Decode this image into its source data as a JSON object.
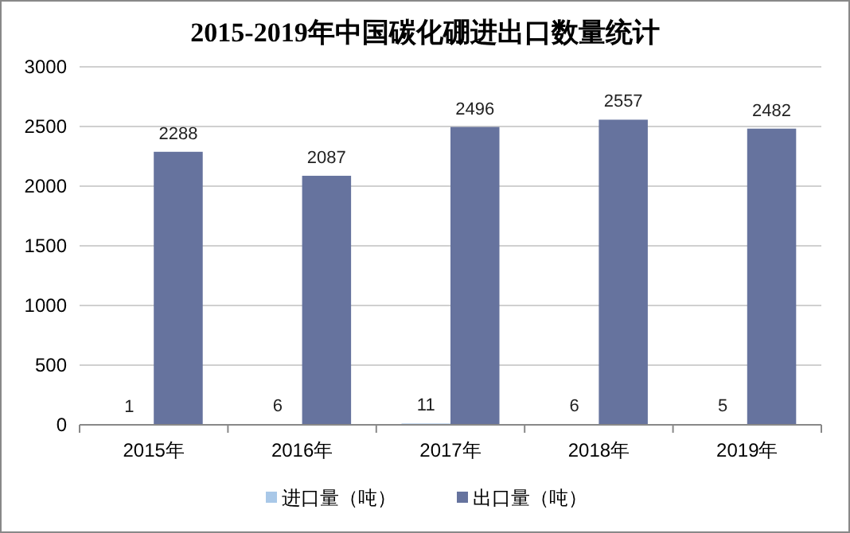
{
  "chart_data": {
    "type": "bar",
    "title": "2015-2019年中国碳化硼进出口数量统计",
    "categories": [
      "2015年",
      "2016年",
      "2017年",
      "2018年",
      "2019年"
    ],
    "series": [
      {
        "name": "进口量（吨）",
        "color": "#a9c8e8",
        "values": [
          1,
          6,
          11,
          6,
          5
        ]
      },
      {
        "name": "出口量（吨）",
        "color": "#66739e",
        "values": [
          2288,
          2087,
          2496,
          2557,
          2482
        ]
      }
    ],
    "ylim": [
      0,
      3000
    ],
    "yticks": [
      0,
      500,
      1000,
      1500,
      2000,
      2500,
      3000
    ],
    "grid": "y",
    "data_labels": true,
    "legend": "bottom"
  }
}
